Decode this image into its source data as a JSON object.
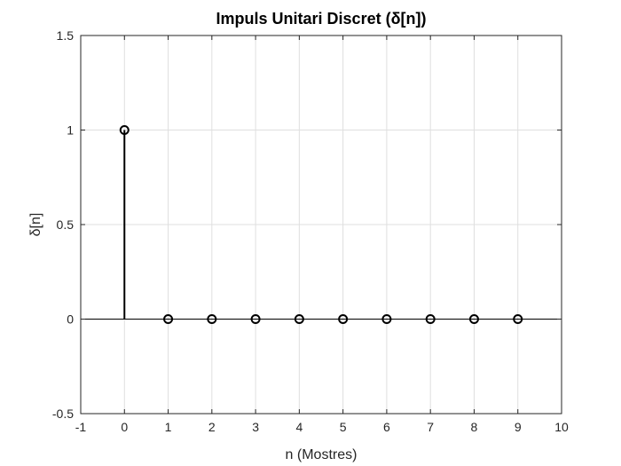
{
  "chart_data": {
    "type": "stem",
    "title": "Impuls Unitari Discret (δ[n])",
    "xlabel": "n (Mostres)",
    "ylabel": "δ[n]",
    "xlim": [
      -1,
      10
    ],
    "ylim": [
      -0.5,
      1.5
    ],
    "xticks": [
      -1,
      0,
      1,
      2,
      3,
      4,
      5,
      6,
      7,
      8,
      9,
      10
    ],
    "yticks": [
      -0.5,
      0,
      0.5,
      1,
      1.5
    ],
    "xtick_labels": [
      "-1",
      "0",
      "1",
      "2",
      "3",
      "4",
      "5",
      "6",
      "7",
      "8",
      "9",
      "10"
    ],
    "ytick_labels": [
      "-0.5",
      "0",
      "0.5",
      "1",
      "1.5"
    ],
    "grid": true,
    "series": [
      {
        "x": [
          0,
          1,
          2,
          3,
          4,
          5,
          6,
          7,
          8,
          9
        ],
        "values": [
          1,
          0,
          0,
          0,
          0,
          0,
          0,
          0,
          0,
          0
        ],
        "color": "#000000",
        "marker": "circle-open"
      }
    ]
  }
}
